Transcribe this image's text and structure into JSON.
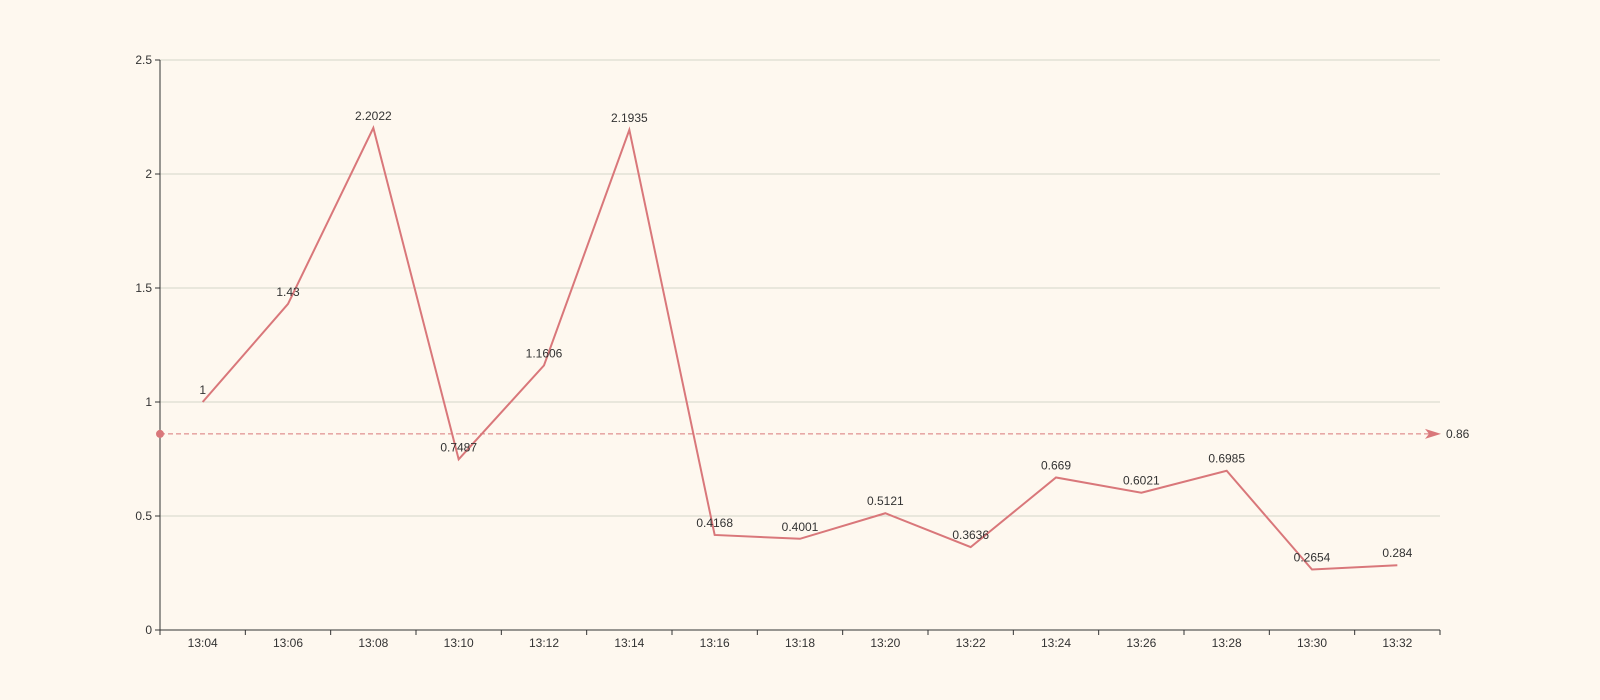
{
  "chart_data": {
    "type": "line",
    "title": "",
    "xlabel": "",
    "ylabel": "",
    "categories": [
      "13:04",
      "13:06",
      "13:08",
      "13:10",
      "13:12",
      "13:14",
      "13:16",
      "13:18",
      "13:20",
      "13:22",
      "13:24",
      "13:26",
      "13:28",
      "13:30",
      "13:32"
    ],
    "series": [
      {
        "values": [
          1,
          1.43,
          2.2022,
          0.7487,
          1.1606,
          2.1935,
          0.4168,
          0.4001,
          0.5121,
          0.3636,
          0.669,
          0.6021,
          0.6985,
          0.2654,
          0.284
        ],
        "labels": [
          "1",
          "1.43",
          "2.2022",
          "0.7487",
          "1.1606",
          "2.1935",
          "0.4168",
          "0.4001",
          "0.5121",
          "0.3636",
          "0.669",
          "0.6021",
          "0.6985",
          "0.2654",
          "0.284"
        ]
      }
    ],
    "ylim": [
      0,
      2.5
    ],
    "yticks": [
      0,
      0.5,
      1,
      1.5,
      2,
      2.5
    ],
    "ytick_labels": [
      "0",
      "0.5",
      "1",
      "1.5",
      "2",
      "2.5"
    ],
    "grid": true,
    "mark_line": {
      "value": 0.86,
      "label": "0.86"
    }
  },
  "colors": {
    "series": "#d9777a",
    "grid": "#d4d6c8",
    "axis": "#333333",
    "background": "#fef8ef"
  }
}
